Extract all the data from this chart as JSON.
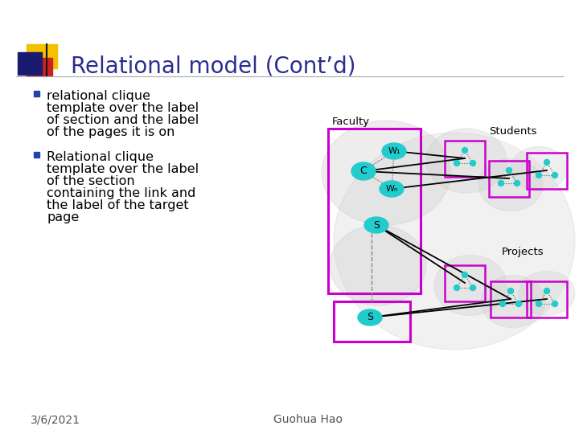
{
  "title": "Relational model (Cont’d)",
  "title_color": "#2d2d8f",
  "title_fontsize": 20,
  "background_color": "#ffffff",
  "bullet1_lines": [
    "relational clique",
    "template over the label",
    "of section and the label",
    "of the pages it is on"
  ],
  "bullet2_lines": [
    "Relational clique",
    "template over the label",
    "of the section",
    "containing the link and",
    "the label of the target",
    "page"
  ],
  "bullet_color": "#000000",
  "bullet_fontsize": 11.5,
  "bullet_marker_color": "#2244aa",
  "footer_left": "3/6/2021",
  "footer_right": "Guohua Hao",
  "footer_fontsize": 10,
  "footer_color": "#555555",
  "accent_yellow": "#f5c000",
  "accent_red": "#cc2222",
  "accent_blue": "#1a1a6e",
  "node_color": "#22cccc",
  "rect_color": "#cc00cc",
  "line_color": "#000000",
  "cloud_color": "#cccccc",
  "label_fontsize": 9.5
}
